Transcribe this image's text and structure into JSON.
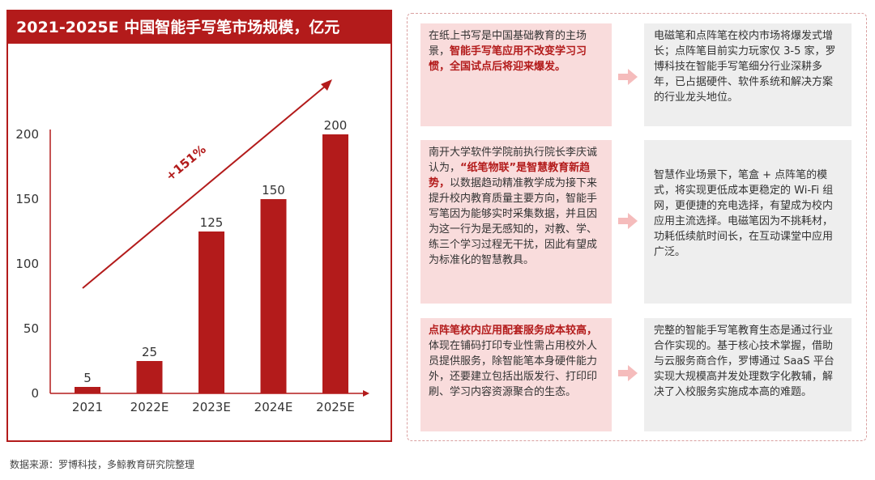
{
  "chart_data": {
    "type": "bar",
    "title": "2021-2025E 中国智能手写笔市场规模，亿元",
    "categories": [
      "2021",
      "2022E",
      "2023E",
      "2024E",
      "2025E"
    ],
    "values": [
      5,
      25,
      125,
      150,
      200
    ],
    "yticks": [
      0,
      50,
      100,
      150,
      200
    ],
    "ylim": [
      0,
      200
    ],
    "annotation": "+151%",
    "bar_color": "#b31b1b",
    "grid": false
  },
  "rows": [
    {
      "left": [
        {
          "t": "在纸上书写是中国基础教育的主场景，"
        },
        {
          "t": "智能手写笔应用不改变学习习惯，全国试点后将迎来爆发。",
          "hl": true
        }
      ],
      "right": "电磁笔和点阵笔在校内市场将爆发式增长；点阵笔目前实力玩家仅 3-5 家，罗博科技在智能手写笔细分行业深耕多年，已占据硬件、软件系统和解决方案的行业龙头地位。"
    },
    {
      "left": [
        {
          "t": "南开大学软件学院前执行院长李庆诚认为，"
        },
        {
          "t": "“纸笔物联”是智慧教育新趋势，",
          "hl": true
        },
        {
          "t": "以数据趋动精准教学成为接下来提升校内教育质量主要方向，智能手写笔因为能够实时采集数据，并且因为这一行为是无感知的，对教、学、练三个学习过程无干扰，因此有望成为标准化的智慧教具。"
        }
      ],
      "right": "智慧作业场景下，笔盒 + 点阵笔的模式，将实现更低成本更稳定的 Wi-Fi 组网，更便捷的充电选择，有望成为校内应用主流选择。电磁笔因为不挑耗材，功耗低续航时间长，在互动课堂中应用广泛。"
    },
    {
      "left": [
        {
          "t": "点阵笔校内应用配套服务成本较高，",
          "hl": true
        },
        {
          "t": "体现在铺码打印专业性需占用校外人员提供服务，除智能笔本身硬件能力外，还要建立包括出版发行、打印印刷、学习内容资源聚合的生态。"
        }
      ],
      "right": "完整的智能手写笔教育生态是通过行业合作实现的。基于核心技术掌握，借助与云服务商合作，罗博通过 SaaS 平台实现大规模高并发处理数字化教辅，解决了入校服务实施成本高的难题。"
    }
  ],
  "source": "数据来源：罗博科技，多鲸教育研究院整理"
}
